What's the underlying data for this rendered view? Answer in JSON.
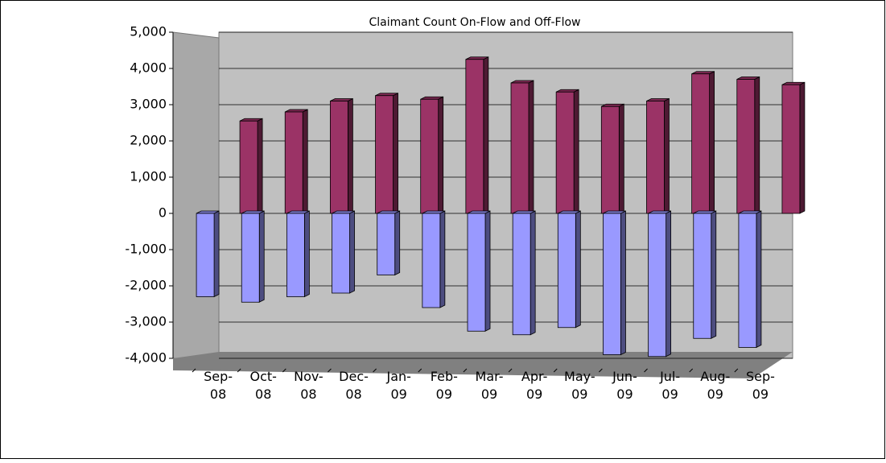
{
  "chart_data": {
    "type": "bar",
    "title": "Claimant Count On-Flow and Off-Flow",
    "categories": [
      "Sep-08",
      "Oct-08",
      "Nov-08",
      "Dec-08",
      "Jan-09",
      "Feb-09",
      "Mar-09",
      "Apr-09",
      "May-09",
      "Jun-09",
      "Jul-09",
      "Aug-09",
      "Sep-09"
    ],
    "series": [
      {
        "color": "#9b3366",
        "values": [
          2550,
          2800,
          3100,
          3250,
          3150,
          4250,
          3600,
          3350,
          2950,
          3100,
          3850,
          3700,
          3550
        ]
      },
      {
        "color": "#9999ff",
        "values": [
          -2300,
          -2450,
          -2300,
          -2200,
          -1700,
          -2600,
          -3250,
          -3350,
          -3150,
          -3900,
          -3950,
          -3450,
          -3700
        ]
      }
    ],
    "ylim": [
      -4000,
      5000
    ],
    "yticks": [
      {
        "value": -4000,
        "label": "-4,000"
      },
      {
        "value": -3000,
        "label": "-3,000"
      },
      {
        "value": -2000,
        "label": "-2,000"
      },
      {
        "value": -1000,
        "label": "-1,000"
      },
      0,
      {
        "value": 1000,
        "label": "1,000"
      },
      {
        "value": 2000,
        "label": "2,000"
      },
      {
        "value": 3000,
        "label": "3,000"
      },
      {
        "value": 4000,
        "label": "4,000"
      },
      {
        "value": 5000,
        "label": "5,000"
      }
    ],
    "grid": true
  }
}
